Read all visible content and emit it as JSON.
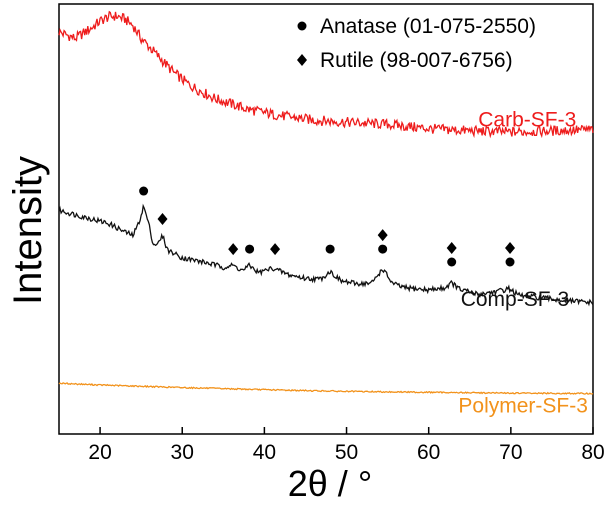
{
  "chart_data": {
    "type": "line",
    "title": "",
    "xlabel": "2θ / °",
    "ylabel": "Intensity",
    "xlim": [
      15,
      80
    ],
    "ylim": [
      0,
      1
    ],
    "xticks": [
      20,
      30,
      40,
      50,
      60,
      70,
      80
    ],
    "yticks_shown": false,
    "legend": [
      {
        "marker": "circle",
        "label": "Anatase (01-075-2550)"
      },
      {
        "marker": "diamond",
        "label": "Rutile (98-007-6756)"
      }
    ],
    "series": [
      {
        "name": "Carb-SF-3",
        "color": "#ee1c1c",
        "label_x": 72,
        "label_y": 0.715,
        "x": [
          15,
          17,
          19,
          20,
          21,
          22,
          23,
          24,
          25,
          27,
          29,
          31,
          34,
          38,
          42,
          46,
          50,
          55,
          60,
          65,
          70,
          75,
          80
        ],
        "y": [
          0.935,
          0.92,
          0.945,
          0.96,
          0.97,
          0.972,
          0.965,
          0.95,
          0.92,
          0.88,
          0.84,
          0.81,
          0.78,
          0.755,
          0.74,
          0.73,
          0.725,
          0.72,
          0.71,
          0.705,
          0.702,
          0.705,
          0.708
        ]
      },
      {
        "name": "Comp-SF-3",
        "color": "#111111",
        "label_x": 70.5,
        "label_y": 0.298,
        "x": [
          15,
          18,
          21,
          23,
          24,
          24.7,
          25.3,
          25.9,
          26.5,
          27.2,
          27.6,
          28.2,
          30,
          33,
          35,
          36.2,
          37.3,
          38.2,
          39.3,
          41,
          43,
          45,
          46.8,
          48,
          49.3,
          51,
          53,
          54.4,
          55.6,
          57,
          60,
          62,
          62.8,
          63.8,
          66,
          68.5,
          69.8,
          71,
          74,
          77,
          80
        ],
        "y": [
          0.52,
          0.505,
          0.49,
          0.47,
          0.462,
          0.49,
          0.53,
          0.49,
          0.44,
          0.445,
          0.462,
          0.428,
          0.41,
          0.398,
          0.388,
          0.392,
          0.38,
          0.392,
          0.375,
          0.386,
          0.37,
          0.362,
          0.36,
          0.378,
          0.356,
          0.35,
          0.35,
          0.384,
          0.35,
          0.34,
          0.335,
          0.34,
          0.352,
          0.336,
          0.325,
          0.332,
          0.338,
          0.322,
          0.316,
          0.31,
          0.305
        ]
      },
      {
        "name": "Polymer-SF-3",
        "color": "#f2921b",
        "label_x": 71.5,
        "label_y": 0.05,
        "x": [
          15,
          20,
          30,
          40,
          50,
          60,
          70,
          80
        ],
        "y": [
          0.118,
          0.114,
          0.108,
          0.103,
          0.099,
          0.097,
          0.095,
          0.094
        ]
      }
    ],
    "annotations": [
      {
        "x": 25.3,
        "y": 0.565,
        "markers": [
          "circle"
        ]
      },
      {
        "x": 27.6,
        "y": 0.5,
        "markers": [
          "diamond"
        ]
      },
      {
        "x": 36.2,
        "y": 0.43,
        "markers": [
          "diamond"
        ]
      },
      {
        "x": 38.2,
        "y": 0.43,
        "markers": [
          "circle"
        ]
      },
      {
        "x": 41.3,
        "y": 0.43,
        "markers": [
          "diamond"
        ]
      },
      {
        "x": 48.0,
        "y": 0.43,
        "markers": [
          "circle"
        ]
      },
      {
        "x": 54.4,
        "y": 0.43,
        "markers": [
          "circle",
          "diamond"
        ]
      },
      {
        "x": 62.8,
        "y": 0.4,
        "markers": [
          "circle",
          "diamond"
        ]
      },
      {
        "x": 69.9,
        "y": 0.4,
        "markers": [
          "circle",
          "diamond"
        ]
      }
    ]
  }
}
